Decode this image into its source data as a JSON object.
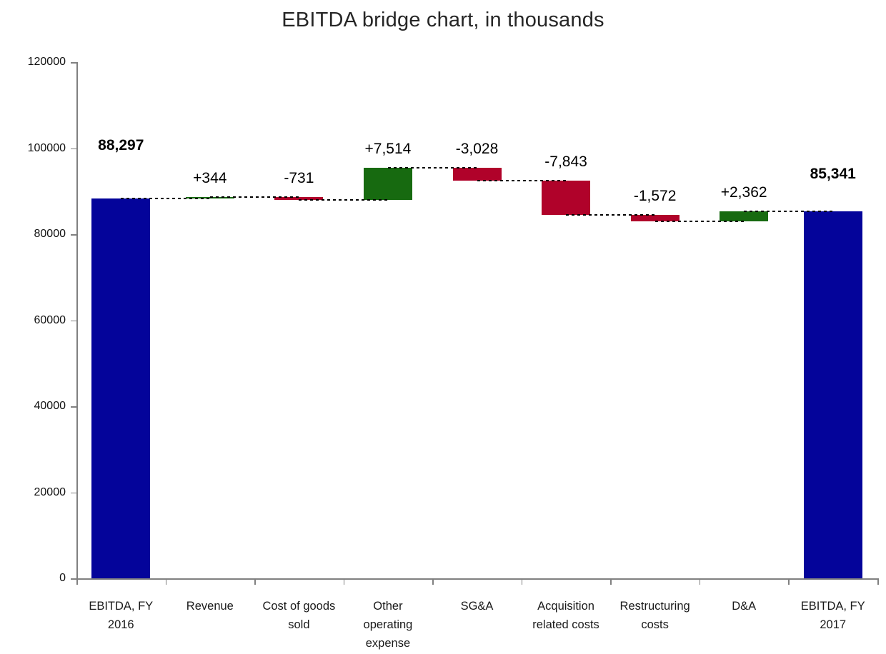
{
  "title": "EBITDA bridge chart, in thousands",
  "colors": {
    "total_bar": "#04049a",
    "increase_bar": "#176a10",
    "decrease_bar": "#b0022a",
    "axis": "#808080",
    "connector": "#000000",
    "text": "#1a1a1a"
  },
  "chart_data": {
    "type": "bar",
    "subtype": "waterfall",
    "title": "EBITDA bridge chart, in thousands",
    "xlabel": "",
    "ylabel": "",
    "ylim": [
      0,
      120000
    ],
    "ytick_step": 20000,
    "ytick_labels": [
      "0",
      "20000",
      "40000",
      "60000",
      "80000",
      "100000",
      "120000"
    ],
    "grid": false,
    "legend": false,
    "connector_style": "dashed",
    "categories": [
      "EBITDA, FY 2016",
      "Revenue",
      "Cost of goods sold",
      "Other operating expense",
      "SG&A",
      "Acquisition related costs",
      "Restructuring costs",
      "D&A",
      "EBITDA, FY 2017"
    ],
    "bars": [
      {
        "category": "EBITDA, FY 2016",
        "kind": "total",
        "label": "88,297",
        "start": 0,
        "end": 88297
      },
      {
        "category": "Revenue",
        "kind": "increase",
        "label": "+344",
        "start": 88297,
        "end": 88641
      },
      {
        "category": "Cost of goods sold",
        "kind": "decrease",
        "label": "-731",
        "start": 88641,
        "end": 87910
      },
      {
        "category": "Other operating expense",
        "kind": "increase",
        "label": "+7,514",
        "start": 87910,
        "end": 95424
      },
      {
        "category": "SG&A",
        "kind": "decrease",
        "label": "-3,028",
        "start": 95424,
        "end": 92396
      },
      {
        "category": "Acquisition related costs",
        "kind": "decrease",
        "label": "-7,843",
        "start": 92396,
        "end": 84553
      },
      {
        "category": "Restructuring costs",
        "kind": "decrease",
        "label": "-1,572",
        "start": 84553,
        "end": 82981
      },
      {
        "category": "D&A",
        "kind": "increase",
        "label": "+2,362",
        "start": 82981,
        "end": 85343
      },
      {
        "category": "EBITDA, FY 2017",
        "kind": "total",
        "label": "85,341",
        "start": 0,
        "end": 85341
      }
    ]
  }
}
